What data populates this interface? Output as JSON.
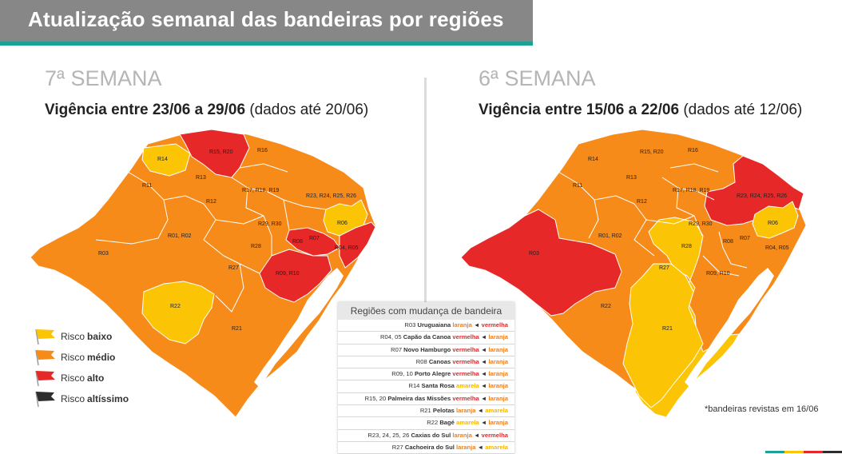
{
  "header": {
    "title": "Atualização semanal das bandeiras por regiões"
  },
  "colors": {
    "baixo": "#fbc404",
    "medio": "#f78b1a",
    "alto": "#e72828",
    "altissimo": "#2d2d2d",
    "teal": "#1aa395"
  },
  "left": {
    "week": "7ª SEMANA",
    "vig_bold": "Vigência entre 23/06 a 29/06",
    "vig_rest": " (dados até 20/06)",
    "labels": {
      "r14": "R14",
      "r15": "R15, R20",
      "r16": "R16",
      "r11": "R11",
      "r13": "R13",
      "r17": "R17, R18, R19",
      "r23": "R23, R24, R25, R26",
      "r12": "R12",
      "r29": "R29, R30",
      "r06": "R06",
      "r01": "R01, R02",
      "r03": "R03",
      "r08": "R08",
      "r07": "R07",
      "r28": "R28",
      "r04": "R04, R05",
      "r27": "R27",
      "r09": "R09, R10",
      "r22": "R22",
      "r21": "R21"
    }
  },
  "right": {
    "week": "6ª SEMANA",
    "vig_bold": "Vigência entre 15/06 a 22/06",
    "vig_rest": " (dados até 12/06)",
    "labels": {
      "r14": "R14",
      "r15": "R15, R20",
      "r16": "R16",
      "r11": "R11",
      "r13": "R13",
      "r17": "R17, R18, R19",
      "r23": "R23, R24, R25, R26",
      "r12": "R12",
      "r29": "R29, R30",
      "r06": "R06",
      "r01": "R01, R02",
      "r03": "R03",
      "r08": "R08",
      "r07": "R07",
      "r28": "R28",
      "r04": "R04, R05",
      "r27": "R27",
      "r09": "R09, R10",
      "r22": "R22",
      "r21": "R21"
    }
  },
  "legend": [
    {
      "prefix": "Risco",
      "level": "baixo",
      "color": "#fbc404"
    },
    {
      "prefix": "Risco",
      "level": "médio",
      "color": "#f78b1a"
    },
    {
      "prefix": "Risco",
      "level": "alto",
      "color": "#e72828"
    },
    {
      "prefix": "Risco",
      "level": "altíssimo",
      "color": "#2d2d2d"
    }
  ],
  "changes": {
    "title": "Regiões com mudança de bandeira",
    "rows": [
      {
        "code": "R03",
        "name": "Uruguaiana",
        "from": "laranja",
        "to": "vermelha"
      },
      {
        "code": "R04, 05",
        "name": "Capão da Canoa",
        "from": "vermelha",
        "to": "laranja"
      },
      {
        "code": "R07",
        "name": "Novo Hamburgo",
        "from": "vermelha",
        "to": "laranja"
      },
      {
        "code": "R08",
        "name": "Canoas",
        "from": "vermelha",
        "to": "laranja"
      },
      {
        "code": "R09, 10",
        "name": "Porto Alegre",
        "from": "vermelha",
        "to": "laranja"
      },
      {
        "code": "R14",
        "name": "Santa Rosa",
        "from": "amarela",
        "to": "laranja"
      },
      {
        "code": "R15, 20",
        "name": "Palmeira das Missões",
        "from": "vermelha",
        "to": "laranja"
      },
      {
        "code": "R21",
        "name": "Pelotas",
        "from": "laranja",
        "to": "amarela"
      },
      {
        "code": "R22",
        "name": "Bagé",
        "from": "amarela",
        "to": "laranja"
      },
      {
        "code": "R23, 24, 25, 26",
        "name": "Caxias do Sul",
        "from": "laranja",
        "to": "vermelha"
      },
      {
        "code": "R27",
        "name": "Cachoeira do Sul",
        "from": "laranja",
        "to": "amarela"
      }
    ]
  },
  "note": "*bandeiras revistas em 16/06"
}
